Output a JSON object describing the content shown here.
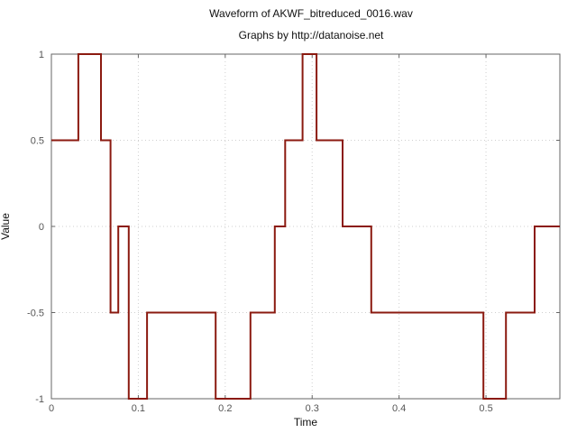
{
  "chart_data": {
    "type": "line",
    "title": "Waveform of AKWF_bitreduced_0016.wav",
    "subtitle": "Graphs by http://datanoise.net",
    "xlabel": "Time",
    "ylabel": "Value",
    "xlim": [
      0,
      0.585
    ],
    "ylim": [
      -1,
      1
    ],
    "grid": true,
    "x_ticks": [
      0,
      0.1,
      0.2,
      0.3,
      0.4,
      0.5
    ],
    "x_tick_labels": [
      "0",
      "0.1",
      "0.2",
      "0.3",
      "0.4",
      "0.5"
    ],
    "y_ticks": [
      -1,
      -0.5,
      0,
      0.5,
      1
    ],
    "y_tick_labels": [
      "-1",
      "-0.5",
      "0",
      "0.5",
      "1"
    ],
    "line_color": "#8b1a10",
    "series": [
      {
        "x": [
          0,
          0.031,
          0.031,
          0.057,
          0.057,
          0.068,
          0.068,
          0.077,
          0.077,
          0.089,
          0.089,
          0.11,
          0.11,
          0.189,
          0.189,
          0.229,
          0.229,
          0.257,
          0.257,
          0.269,
          0.269,
          0.289,
          0.289,
          0.305,
          0.305,
          0.335,
          0.335,
          0.368,
          0.368,
          0.497,
          0.497,
          0.523,
          0.523,
          0.556,
          0.556,
          0.585
        ],
        "y": [
          0.5,
          0.5,
          1,
          1,
          0.5,
          0.5,
          -0.5,
          -0.5,
          0,
          0,
          -1,
          -1,
          -0.5,
          -0.5,
          -1,
          -1,
          -0.5,
          -0.5,
          0,
          0,
          0.5,
          0.5,
          1,
          1,
          0.5,
          0.5,
          0,
          0,
          -0.5,
          -0.5,
          -1,
          -1,
          -0.5,
          -0.5,
          0,
          0
        ]
      }
    ]
  }
}
